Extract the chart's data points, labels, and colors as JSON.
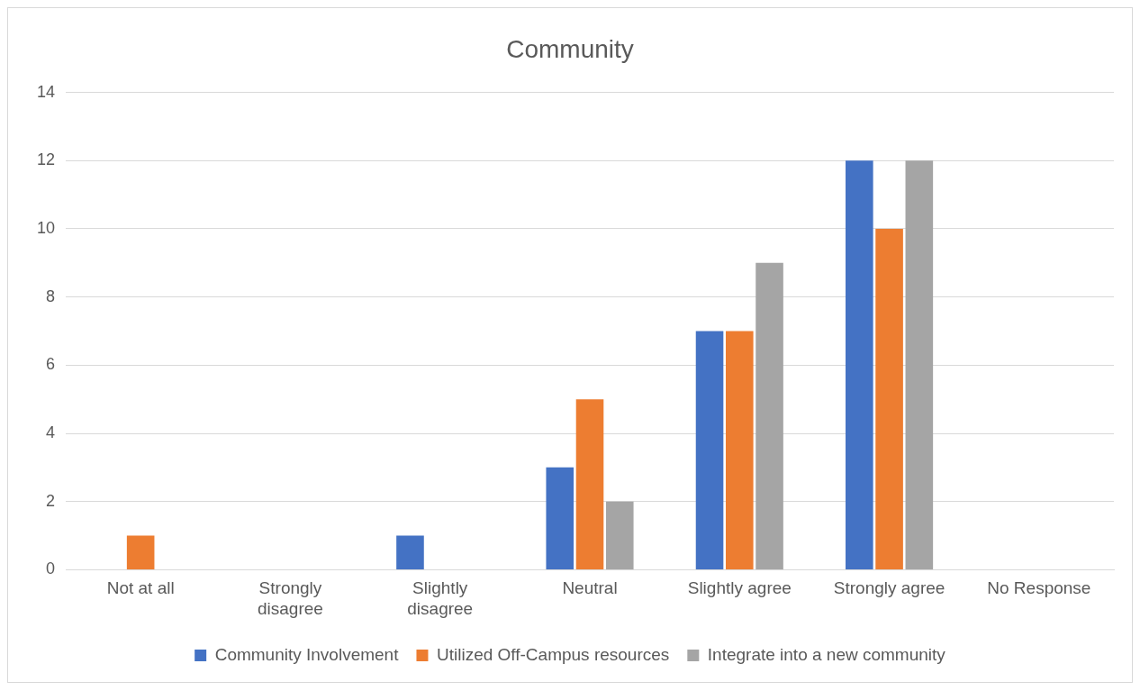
{
  "chart_data": {
    "type": "bar",
    "title": "Community",
    "categories": [
      "Not at all",
      "Strongly disagree",
      "Slightly disagree",
      "Neutral",
      "Slightly agree",
      "Strongly agree",
      "No Response"
    ],
    "series": [
      {
        "name": "Community Involvement",
        "color": "#4472c4",
        "values": [
          0,
          0,
          1,
          3,
          7,
          12,
          0
        ]
      },
      {
        "name": "Utilized Off-Campus resources",
        "color": "#ed7d31",
        "values": [
          1,
          0,
          0,
          5,
          7,
          10,
          0
        ]
      },
      {
        "name": "Integrate into a new community",
        "color": "#a5a5a5",
        "values": [
          0,
          0,
          0,
          2,
          9,
          12,
          0
        ]
      }
    ],
    "ylim": [
      0,
      14
    ],
    "yticks": [
      0,
      2,
      4,
      6,
      8,
      10,
      12,
      14
    ],
    "grid": "y",
    "legend": "bottom"
  }
}
